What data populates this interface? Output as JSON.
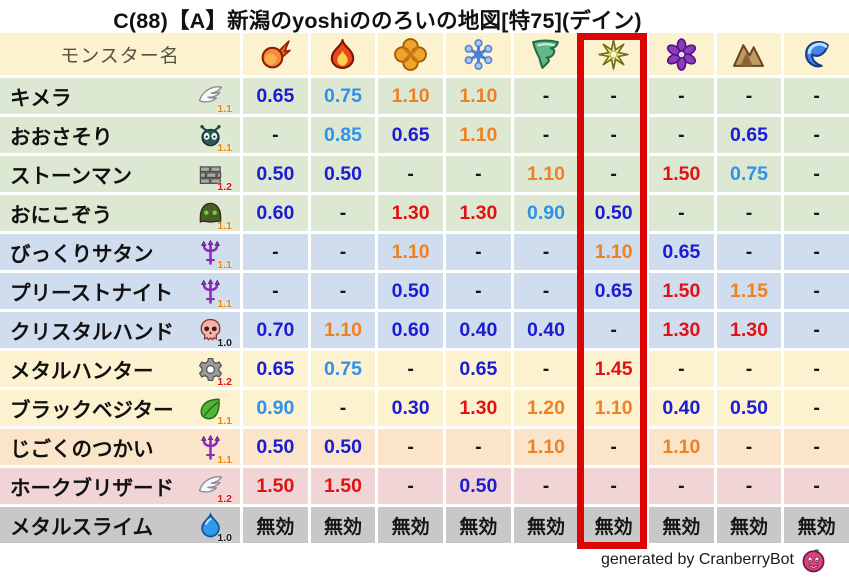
{
  "title": "C(88)【A】新潟のyoshiののろいの地図[特75](デイン)",
  "chart_data": {
    "type": "table",
    "title": "C(88)【A】新潟のyoshiののろいの地図[特75](デイン)",
    "header": {
      "monster_column_label": "モンスター名",
      "element_icons": [
        "fireball-icon",
        "flame-icon",
        "explosion-icon",
        "snowflake-icon",
        "tornado-icon",
        "shine-star-icon",
        "dark-pinwheel-icon",
        "mountain-icon",
        "wave-icon"
      ],
      "highlighted_column_index": 5
    },
    "rows": [
      {
        "name": "キメラ",
        "family_icon": "wing-icon",
        "rank": "1.1",
        "rank_color": "orange",
        "bg": "green",
        "values": [
          "0.65",
          "0.75",
          "1.10",
          "1.10",
          "-",
          "-",
          "-",
          "-",
          "-"
        ]
      },
      {
        "name": "おおさそり",
        "family_icon": "bug-icon",
        "rank": "1.1",
        "rank_color": "orange",
        "bg": "green",
        "values": [
          "-",
          "0.85",
          "0.65",
          "1.10",
          "-",
          "-",
          "-",
          "0.65",
          "-"
        ]
      },
      {
        "name": "ストーンマン",
        "family_icon": "brick-icon",
        "rank": "1.2",
        "rank_color": "red",
        "bg": "green",
        "values": [
          "0.50",
          "0.50",
          "-",
          "-",
          "1.10",
          "-",
          "1.50",
          "0.75",
          "-"
        ]
      },
      {
        "name": "おにこぞう",
        "family_icon": "hood-icon",
        "rank": "1.1",
        "rank_color": "orange",
        "bg": "green",
        "values": [
          "0.60",
          "-",
          "1.30",
          "1.30",
          "0.90",
          "0.50",
          "-",
          "-",
          "-"
        ]
      },
      {
        "name": "びっくりサタン",
        "family_icon": "trident-icon",
        "rank": "1.1",
        "rank_color": "orange",
        "bg": "blue",
        "values": [
          "-",
          "-",
          "1.10",
          "-",
          "-",
          "1.10",
          "0.65",
          "-",
          "-"
        ]
      },
      {
        "name": "プリーストナイト",
        "family_icon": "trident-icon",
        "rank": "1.1",
        "rank_color": "orange",
        "bg": "blue",
        "values": [
          "-",
          "-",
          "0.50",
          "-",
          "-",
          "0.65",
          "1.50",
          "1.15",
          "-"
        ]
      },
      {
        "name": "クリスタルハンド",
        "family_icon": "skull-icon",
        "rank": "1.0",
        "rank_color": "black",
        "bg": "blue",
        "values": [
          "0.70",
          "1.10",
          "0.60",
          "0.40",
          "0.40",
          "-",
          "1.30",
          "1.30",
          "-"
        ]
      },
      {
        "name": "メタルハンター",
        "family_icon": "gear-icon",
        "rank": "1.2",
        "rank_color": "red",
        "bg": "cream",
        "values": [
          "0.65",
          "0.75",
          "-",
          "0.65",
          "-",
          "1.45",
          "-",
          "-",
          "-"
        ]
      },
      {
        "name": "ブラックベジター",
        "family_icon": "leaf-icon",
        "rank": "1.1",
        "rank_color": "orange",
        "bg": "cream",
        "values": [
          "0.90",
          "-",
          "0.30",
          "1.30",
          "1.20",
          "1.10",
          "0.40",
          "0.50",
          "-"
        ]
      },
      {
        "name": "じごくのつかい",
        "family_icon": "trident-icon",
        "rank": "1.1",
        "rank_color": "orange",
        "bg": "peach",
        "values": [
          "0.50",
          "0.50",
          "-",
          "-",
          "1.10",
          "-",
          "1.10",
          "-",
          "-"
        ]
      },
      {
        "name": "ホークブリザード",
        "family_icon": "wing-icon",
        "rank": "1.2",
        "rank_color": "red",
        "bg": "pink",
        "values": [
          "1.50",
          "1.50",
          "-",
          "0.50",
          "-",
          "-",
          "-",
          "-",
          "-"
        ]
      },
      {
        "name": "メタルスライム",
        "family_icon": "slime-icon",
        "rank": "1.0",
        "rank_color": "black",
        "bg": "gray",
        "values": [
          "無効",
          "無効",
          "無効",
          "無効",
          "無効",
          "無効",
          "無効",
          "無効",
          "無効"
        ]
      }
    ]
  },
  "footer": {
    "credit": "generated by CranberryBot",
    "credit_icon": "cranberry-icon"
  },
  "colors": {
    "value_resist_strong": "#1c1cd2",
    "value_resist": "#2f92e8",
    "value_weak": "#ef8122",
    "value_weak_strong": "#e31212",
    "value_neutral": "#151515",
    "rank_orange": "#f08300",
    "rank_red": "#e31212",
    "rank_black": "#1a1a1a",
    "highlight_border": "#dd0404",
    "header_bg": "#fdf2d0",
    "row_green": "#dde8d3",
    "row_blue": "#cfddee",
    "row_cream": "#fcf2cf",
    "row_peach": "#fae5cb",
    "row_pink": "#f1d5d6",
    "row_gray": "#c8c8c8"
  }
}
